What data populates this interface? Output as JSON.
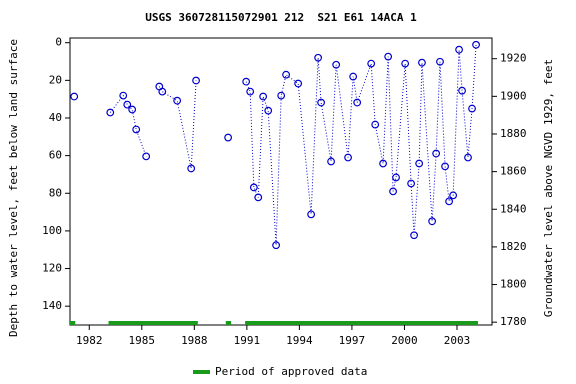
{
  "chart_data": {
    "type": "line",
    "title": "USGS 360728115072901 212  S21 E61 14ACA 1",
    "y_label": "Depth to water level, feet below land surface",
    "y2_label": "Groundwater level above NGVD 1929, feet",
    "x": [
      1981.14,
      null,
      1983.2,
      1983.94,
      1984.17,
      1984.45,
      1984.68,
      1985.25,
      null,
      1986.0,
      1986.17,
      1987.02,
      1987.82,
      1988.1,
      null,
      1989.93,
      null,
      1990.96,
      1991.19,
      1991.4,
      1991.65,
      1991.93,
      1992.22,
      1992.67,
      1992.96,
      1993.24,
      1993.93,
      1994.67,
      1995.07,
      1995.24,
      1995.81,
      1996.1,
      1996.78,
      1997.07,
      1997.3,
      1998.1,
      1998.33,
      1998.78,
      1999.07,
      1999.35,
      1999.52,
      2000.04,
      2000.38,
      2000.55,
      2000.84,
      2001.0,
      2001.58,
      2001.81,
      2002.03,
      2002.32,
      2002.55,
      2002.78,
      2003.12,
      2003.29,
      2003.63,
      2003.86,
      2004.09
    ],
    "series": [
      {
        "color": "#0000cc",
        "values": [
          28.6,
          null,
          37.1,
          28.1,
          32.9,
          35.5,
          46.1,
          60.4,
          null,
          23.3,
          26,
          30.8,
          66.8,
          20.1,
          null,
          50.4,
          null,
          20.7,
          26,
          76.9,
          82.2,
          28.6,
          36.1,
          107.6,
          28.1,
          17,
          21.7,
          91.2,
          8,
          31.8,
          63.1,
          11.7,
          61,
          18,
          31.8,
          11.1,
          43.5,
          64.2,
          7.4,
          79,
          71.6,
          11.1,
          74.8,
          102.3,
          64.2,
          10.6,
          94.9,
          58.9,
          10.1,
          65.7,
          84.3,
          81.1,
          3.7,
          25.5,
          61,
          35,
          1.1
        ]
      }
    ],
    "xlim": [
      1980.9,
      2005.0
    ],
    "xticks": [
      1982,
      1985,
      1988,
      1991,
      1994,
      1997,
      2000,
      2003
    ],
    "ylim": [
      -2.5,
      150
    ],
    "y_inverted": true,
    "yticks": [
      0,
      20,
      40,
      60,
      80,
      100,
      120,
      140
    ],
    "y2lim": [
      1778.5,
      1931
    ],
    "y2ticks": [
      1780,
      1800,
      1820,
      1840,
      1860,
      1880,
      1900,
      1920
    ],
    "approved_periods": {
      "name": "Period of approved data",
      "color": "#1a9a1a",
      "ranges": [
        [
          1980.9,
          1981.2
        ],
        [
          1983.1,
          1988.2
        ],
        [
          1989.8,
          1990.1
        ],
        [
          1990.9,
          2004.2
        ]
      ]
    }
  }
}
